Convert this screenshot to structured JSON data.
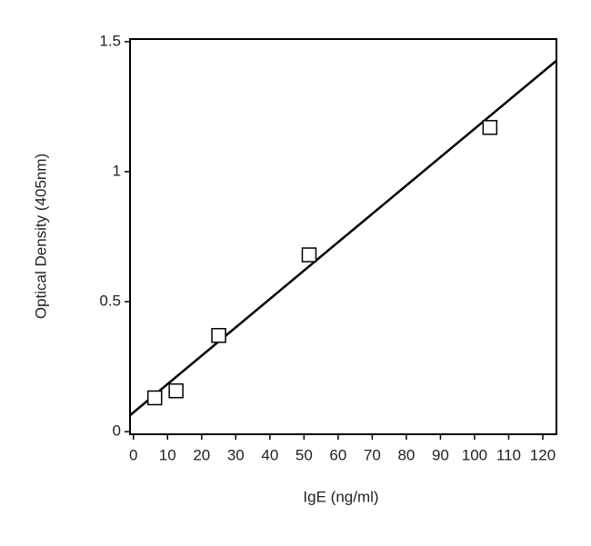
{
  "chart_data": {
    "type": "scatter",
    "xlabel": "IgE (ng/ml)",
    "ylabel": "Optical Density (405nm)",
    "points": {
      "x": [
        6.25,
        12.5,
        25,
        51.5,
        104.5
      ],
      "values": [
        0.13,
        0.157,
        0.37,
        0.68,
        1.17
      ],
      "color": "#ffffff"
    },
    "fit": {
      "x": [
        -1,
        124
      ],
      "values": [
        0.063,
        1.427
      ],
      "color": "#000000"
    },
    "xlim": [
      -1,
      124
    ],
    "ylim": [
      -0.01,
      1.51
    ],
    "xticks": [
      0,
      10,
      20,
      30,
      40,
      50,
      60,
      70,
      80,
      90,
      100,
      110,
      120
    ],
    "yticks": [
      0,
      0.5,
      1,
      1.5
    ],
    "grid": false
  }
}
